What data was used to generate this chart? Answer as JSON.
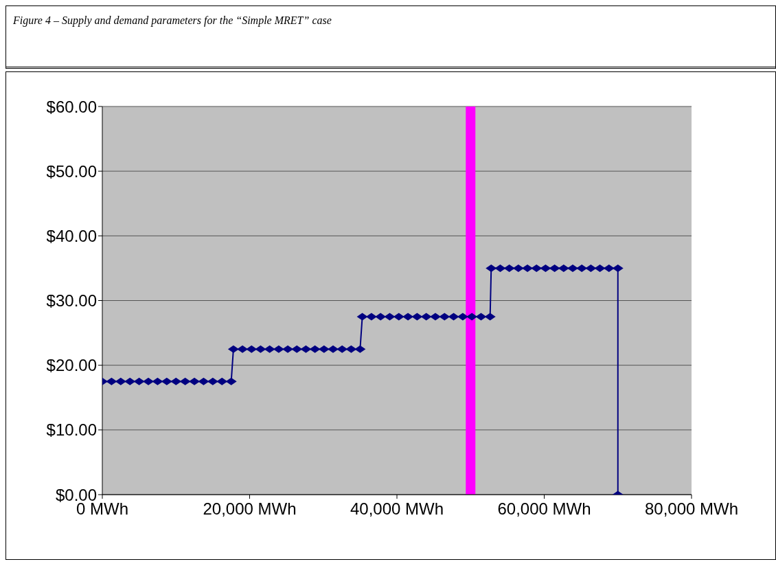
{
  "chart_data": {
    "type": "line",
    "title": "Figure 4 – Supply and demand parameters for the “Simple MRET” case",
    "x": [
      0,
      1250,
      2500,
      3750,
      5000,
      6250,
      7500,
      8750,
      10000,
      11250,
      12500,
      13750,
      15000,
      16250,
      17500,
      17800,
      19030,
      20260,
      21490,
      22720,
      23950,
      25180,
      26410,
      27640,
      28870,
      30100,
      31330,
      32560,
      33790,
      35000,
      35300,
      36540,
      37780,
      39020,
      40260,
      41500,
      42740,
      43980,
      45220,
      46460,
      47700,
      48940,
      50180,
      51420,
      52650,
      52800,
      54030,
      55260,
      56490,
      57720,
      58950,
      60180,
      61410,
      62640,
      63870,
      65100,
      66330,
      67560,
      68790,
      70000,
      70000
    ],
    "series": [
      {
        "color": "#000080",
        "values": [
          17.5,
          17.5,
          17.5,
          17.5,
          17.5,
          17.5,
          17.5,
          17.5,
          17.5,
          17.5,
          17.5,
          17.5,
          17.5,
          17.5,
          17.5,
          22.5,
          22.5,
          22.5,
          22.5,
          22.5,
          22.5,
          22.5,
          22.5,
          22.5,
          22.5,
          22.5,
          22.5,
          22.5,
          22.5,
          22.5,
          27.5,
          27.5,
          27.5,
          27.5,
          27.5,
          27.5,
          27.5,
          27.5,
          27.5,
          27.5,
          27.5,
          27.5,
          27.5,
          27.5,
          27.5,
          35,
          35,
          35,
          35,
          35,
          35,
          35,
          35,
          35,
          35,
          35,
          35,
          35,
          35,
          35,
          0
        ]
      }
    ],
    "marker": "diamond",
    "xlim": [
      0,
      80000
    ],
    "xticks": [
      {
        "value": 0,
        "label": "0 MWh"
      },
      {
        "value": 20000,
        "label": "20,000 MWh"
      },
      {
        "value": 40000,
        "label": "40,000 MWh"
      },
      {
        "value": 60000,
        "label": "60,000 MWh"
      },
      {
        "value": 80000,
        "label": "80,000 MWh"
      }
    ],
    "ylim": [
      0,
      60
    ],
    "yticks": [
      {
        "value": 0,
        "label": "$0.00"
      },
      {
        "value": 10,
        "label": "$10.00"
      },
      {
        "value": 20,
        "label": "$20.00"
      },
      {
        "value": 30,
        "label": "$30.00"
      },
      {
        "value": 40,
        "label": "$40.00"
      },
      {
        "value": 50,
        "label": "$50.00"
      },
      {
        "value": 60,
        "label": "$60.00"
      }
    ],
    "grid": "y",
    "ref_lines": [
      {
        "axis": "x",
        "value": 50000,
        "color": "#ff00ff"
      }
    ]
  }
}
